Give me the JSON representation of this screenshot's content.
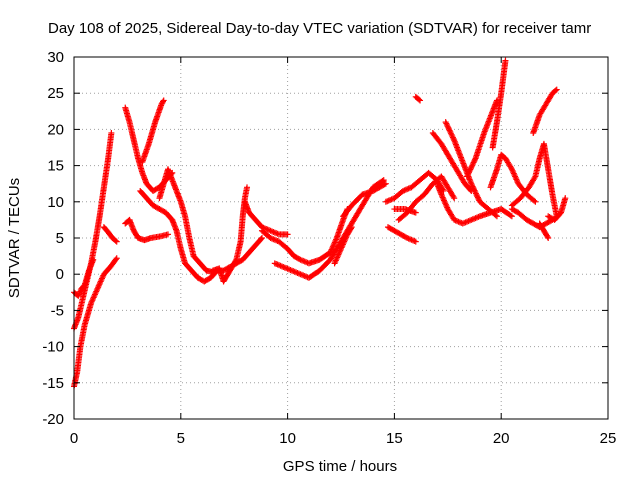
{
  "chart_data": {
    "type": "scatter",
    "title": "Day 108 of 2025, Sidereal Day-to-day VTEC variation (SDTVAR) for receiver tamr",
    "xlabel": "GPS time / hours",
    "ylabel": "SDTVAR / TECUs",
    "xlim": [
      0,
      25
    ],
    "ylim": [
      -20,
      30
    ],
    "xticks": [
      0,
      5,
      10,
      15,
      20,
      25
    ],
    "yticks": [
      -20,
      -15,
      -10,
      -5,
      0,
      5,
      10,
      15,
      20,
      25,
      30
    ],
    "grid": true,
    "marker": "+",
    "series": [
      {
        "name": "SDTVAR",
        "color": "#ff0000",
        "tracks": [
          [
            [
              0.0,
              -7.5
            ],
            [
              0.2,
              -6.0
            ],
            [
              0.4,
              -3.5
            ],
            [
              0.6,
              -1.0
            ],
            [
              0.8,
              1.5
            ],
            [
              1.0,
              4.5
            ],
            [
              1.2,
              8.0
            ],
            [
              1.4,
              12.0
            ],
            [
              1.6,
              16.0
            ],
            [
              1.75,
              19.5
            ]
          ],
          [
            [
              0.0,
              -15.5
            ],
            [
              0.15,
              -13.5
            ],
            [
              0.3,
              -10.0
            ],
            [
              0.5,
              -7.0
            ],
            [
              0.8,
              -4.0
            ],
            [
              1.1,
              -2.0
            ],
            [
              1.4,
              0.0
            ],
            [
              1.7,
              1.0
            ],
            [
              2.0,
              2.2
            ]
          ],
          [
            [
              0.0,
              -2.5
            ],
            [
              0.2,
              -3.0
            ],
            [
              0.35,
              -2.0
            ],
            [
              0.5,
              -1.5
            ],
            [
              0.7,
              0.5
            ],
            [
              0.9,
              2.0
            ]
          ],
          [
            [
              1.4,
              6.5
            ],
            [
              1.6,
              5.8
            ],
            [
              1.8,
              5.0
            ],
            [
              2.0,
              4.5
            ]
          ],
          [
            [
              2.4,
              7.0
            ],
            [
              2.6,
              7.5
            ],
            [
              2.8,
              6.0
            ],
            [
              3.0,
              5.0
            ],
            [
              3.3,
              4.7
            ],
            [
              3.6,
              5.0
            ],
            [
              4.0,
              5.2
            ],
            [
              4.4,
              5.5
            ]
          ],
          [
            [
              2.4,
              23.0
            ],
            [
              2.6,
              21.0
            ],
            [
              2.8,
              18.5
            ],
            [
              3.0,
              16.0
            ],
            [
              3.2,
              14.0
            ],
            [
              3.4,
              12.5
            ],
            [
              3.7,
              11.5
            ],
            [
              4.0,
              12.0
            ],
            [
              4.3,
              13.0
            ],
            [
              4.6,
              14.0
            ]
          ],
          [
            [
              3.2,
              15.5
            ],
            [
              3.5,
              18.0
            ],
            [
              3.8,
              21.0
            ],
            [
              4.1,
              23.5
            ],
            [
              4.2,
              24.0
            ]
          ],
          [
            [
              4.0,
              10.5
            ],
            [
              4.2,
              12.5
            ],
            [
              4.4,
              14.5
            ],
            [
              4.6,
              13.0
            ],
            [
              4.8,
              11.5
            ],
            [
              5.0,
              10.0
            ],
            [
              5.2,
              8.0
            ],
            [
              5.4,
              5.0
            ],
            [
              5.6,
              2.5
            ],
            [
              5.9,
              1.5
            ],
            [
              6.2,
              0.5
            ],
            [
              6.5,
              0.3
            ]
          ],
          [
            [
              3.1,
              11.5
            ],
            [
              3.4,
              10.5
            ],
            [
              3.7,
              9.5
            ],
            [
              4.0,
              9.0
            ],
            [
              4.3,
              8.5
            ],
            [
              4.6,
              7.5
            ],
            [
              4.8,
              6.0
            ],
            [
              5.0,
              3.5
            ],
            [
              5.2,
              1.5
            ],
            [
              5.5,
              0.5
            ],
            [
              5.8,
              -0.5
            ],
            [
              6.1,
              -1.0
            ],
            [
              6.4,
              -0.5
            ],
            [
              6.7,
              0.5
            ]
          ],
          [
            [
              6.5,
              0.5
            ],
            [
              6.8,
              0.8
            ],
            [
              7.0,
              -1.0
            ],
            [
              7.2,
              0.0
            ],
            [
              7.4,
              1.0
            ],
            [
              7.6,
              2.0
            ],
            [
              7.8,
              4.5
            ],
            [
              7.9,
              8.0
            ],
            [
              8.0,
              10.5
            ],
            [
              8.1,
              12.0
            ]
          ],
          [
            [
              6.7,
              0.5
            ],
            [
              7.0,
              0.5
            ],
            [
              7.3,
              1.0
            ],
            [
              7.6,
              1.5
            ],
            [
              7.9,
              2.0
            ],
            [
              8.2,
              3.0
            ],
            [
              8.5,
              4.0
            ],
            [
              8.8,
              5.0
            ]
          ],
          [
            [
              8.0,
              10.0
            ],
            [
              8.2,
              8.5
            ],
            [
              8.5,
              7.5
            ],
            [
              8.8,
              6.5
            ],
            [
              9.2,
              6.0
            ],
            [
              9.6,
              5.5
            ],
            [
              10.0,
              5.5
            ]
          ],
          [
            [
              8.8,
              6.0
            ],
            [
              9.2,
              5.0
            ],
            [
              9.6,
              4.5
            ],
            [
              10.0,
              3.5
            ],
            [
              10.3,
              2.5
            ],
            [
              10.6,
              2.0
            ],
            [
              11.0,
              1.5
            ],
            [
              11.5,
              2.0
            ],
            [
              12.0,
              3.0
            ],
            [
              12.3,
              5.0
            ],
            [
              12.6,
              7.5
            ],
            [
              12.8,
              9.0
            ]
          ],
          [
            [
              9.4,
              1.5
            ],
            [
              9.8,
              1.0
            ],
            [
              10.2,
              0.5
            ],
            [
              10.6,
              0.0
            ],
            [
              11.0,
              -0.5
            ],
            [
              11.5,
              0.5
            ],
            [
              12.0,
              2.0
            ],
            [
              12.4,
              4.0
            ],
            [
              12.8,
              6.0
            ],
            [
              13.2,
              8.0
            ],
            [
              13.6,
              10.0
            ],
            [
              14.0,
              12.0
            ],
            [
              14.5,
              13.0
            ]
          ],
          [
            [
              12.2,
              1.5
            ],
            [
              12.5,
              3.5
            ],
            [
              12.8,
              5.5
            ],
            [
              13.0,
              6.5
            ]
          ],
          [
            [
              12.6,
              8.0
            ],
            [
              13.0,
              9.5
            ],
            [
              13.5,
              11.0
            ],
            [
              14.0,
              11.5
            ],
            [
              14.6,
              12.5
            ]
          ],
          [
            [
              14.6,
              10.0
            ],
            [
              15.0,
              10.5
            ],
            [
              15.4,
              11.5
            ],
            [
              15.8,
              12.0
            ],
            [
              16.2,
              13.0
            ],
            [
              16.6,
              14.0
            ],
            [
              17.0,
              13.0
            ],
            [
              17.3,
              11.5
            ]
          ],
          [
            [
              14.7,
              6.5
            ],
            [
              15.0,
              6.0
            ],
            [
              15.3,
              5.5
            ],
            [
              15.6,
              5.0
            ],
            [
              16.0,
              4.5
            ]
          ],
          [
            [
              15.2,
              7.5
            ],
            [
              15.6,
              8.5
            ],
            [
              16.0,
              10.0
            ],
            [
              16.4,
              11.0
            ],
            [
              16.8,
              12.5
            ],
            [
              17.2,
              13.5
            ],
            [
              17.5,
              12.0
            ],
            [
              17.8,
              10.5
            ]
          ],
          [
            [
              16.0,
              24.5
            ],
            [
              16.2,
              24.0
            ]
          ],
          [
            [
              15.0,
              9.0
            ],
            [
              15.5,
              9.0
            ],
            [
              16.0,
              8.5
            ]
          ],
          [
            [
              17.0,
              12.5
            ],
            [
              17.2,
              11.0
            ],
            [
              17.5,
              9.0
            ],
            [
              17.8,
              7.5
            ],
            [
              18.2,
              7.0
            ],
            [
              18.6,
              7.5
            ],
            [
              19.0,
              8.0
            ],
            [
              19.5,
              8.5
            ],
            [
              20.0,
              9.0
            ],
            [
              20.5,
              8.0
            ]
          ],
          [
            [
              16.8,
              19.5
            ],
            [
              17.2,
              18.0
            ],
            [
              17.6,
              16.0
            ],
            [
              18.0,
              14.0
            ],
            [
              18.3,
              12.5
            ],
            [
              18.6,
              11.5
            ]
          ],
          [
            [
              17.4,
              21.0
            ],
            [
              17.8,
              18.5
            ],
            [
              18.2,
              15.5
            ],
            [
              18.6,
              12.5
            ],
            [
              19.0,
              10.0
            ],
            [
              19.4,
              9.0
            ],
            [
              19.8,
              8.0
            ]
          ],
          [
            [
              18.4,
              13.5
            ],
            [
              18.8,
              16.0
            ],
            [
              19.2,
              19.5
            ],
            [
              19.6,
              22.5
            ],
            [
              19.8,
              24.0
            ]
          ],
          [
            [
              19.5,
              12.0
            ],
            [
              19.8,
              14.5
            ],
            [
              20.0,
              16.5
            ],
            [
              20.2,
              16.0
            ],
            [
              20.5,
              14.5
            ],
            [
              20.8,
              12.5
            ],
            [
              21.2,
              11.0
            ],
            [
              21.6,
              10.0
            ]
          ],
          [
            [
              19.6,
              17.5
            ],
            [
              19.8,
              21.0
            ],
            [
              20.0,
              25.0
            ],
            [
              20.2,
              29.5
            ]
          ],
          [
            [
              20.5,
              9.0
            ],
            [
              20.8,
              8.5
            ],
            [
              21.2,
              7.5
            ],
            [
              21.5,
              7.0
            ],
            [
              21.8,
              6.5
            ],
            [
              22.1,
              7.0
            ],
            [
              22.4,
              7.5
            ]
          ],
          [
            [
              20.5,
              9.5
            ],
            [
              20.9,
              10.5
            ],
            [
              21.3,
              12.0
            ],
            [
              21.6,
              13.5
            ],
            [
              21.8,
              16.0
            ],
            [
              22.0,
              18.0
            ],
            [
              22.2,
              14.5
            ],
            [
              22.4,
              11.0
            ],
            [
              22.6,
              8.0
            ]
          ],
          [
            [
              21.5,
              19.5
            ],
            [
              21.8,
              22.0
            ],
            [
              22.1,
              23.5
            ],
            [
              22.4,
              25.0
            ],
            [
              22.6,
              25.5
            ]
          ],
          [
            [
              21.8,
              7.0
            ],
            [
              22.0,
              6.0
            ],
            [
              22.2,
              5.0
            ]
          ],
          [
            [
              22.2,
              8.0
            ],
            [
              22.5,
              7.5
            ],
            [
              22.8,
              8.5
            ],
            [
              23.0,
              10.5
            ]
          ]
        ]
      }
    ]
  }
}
